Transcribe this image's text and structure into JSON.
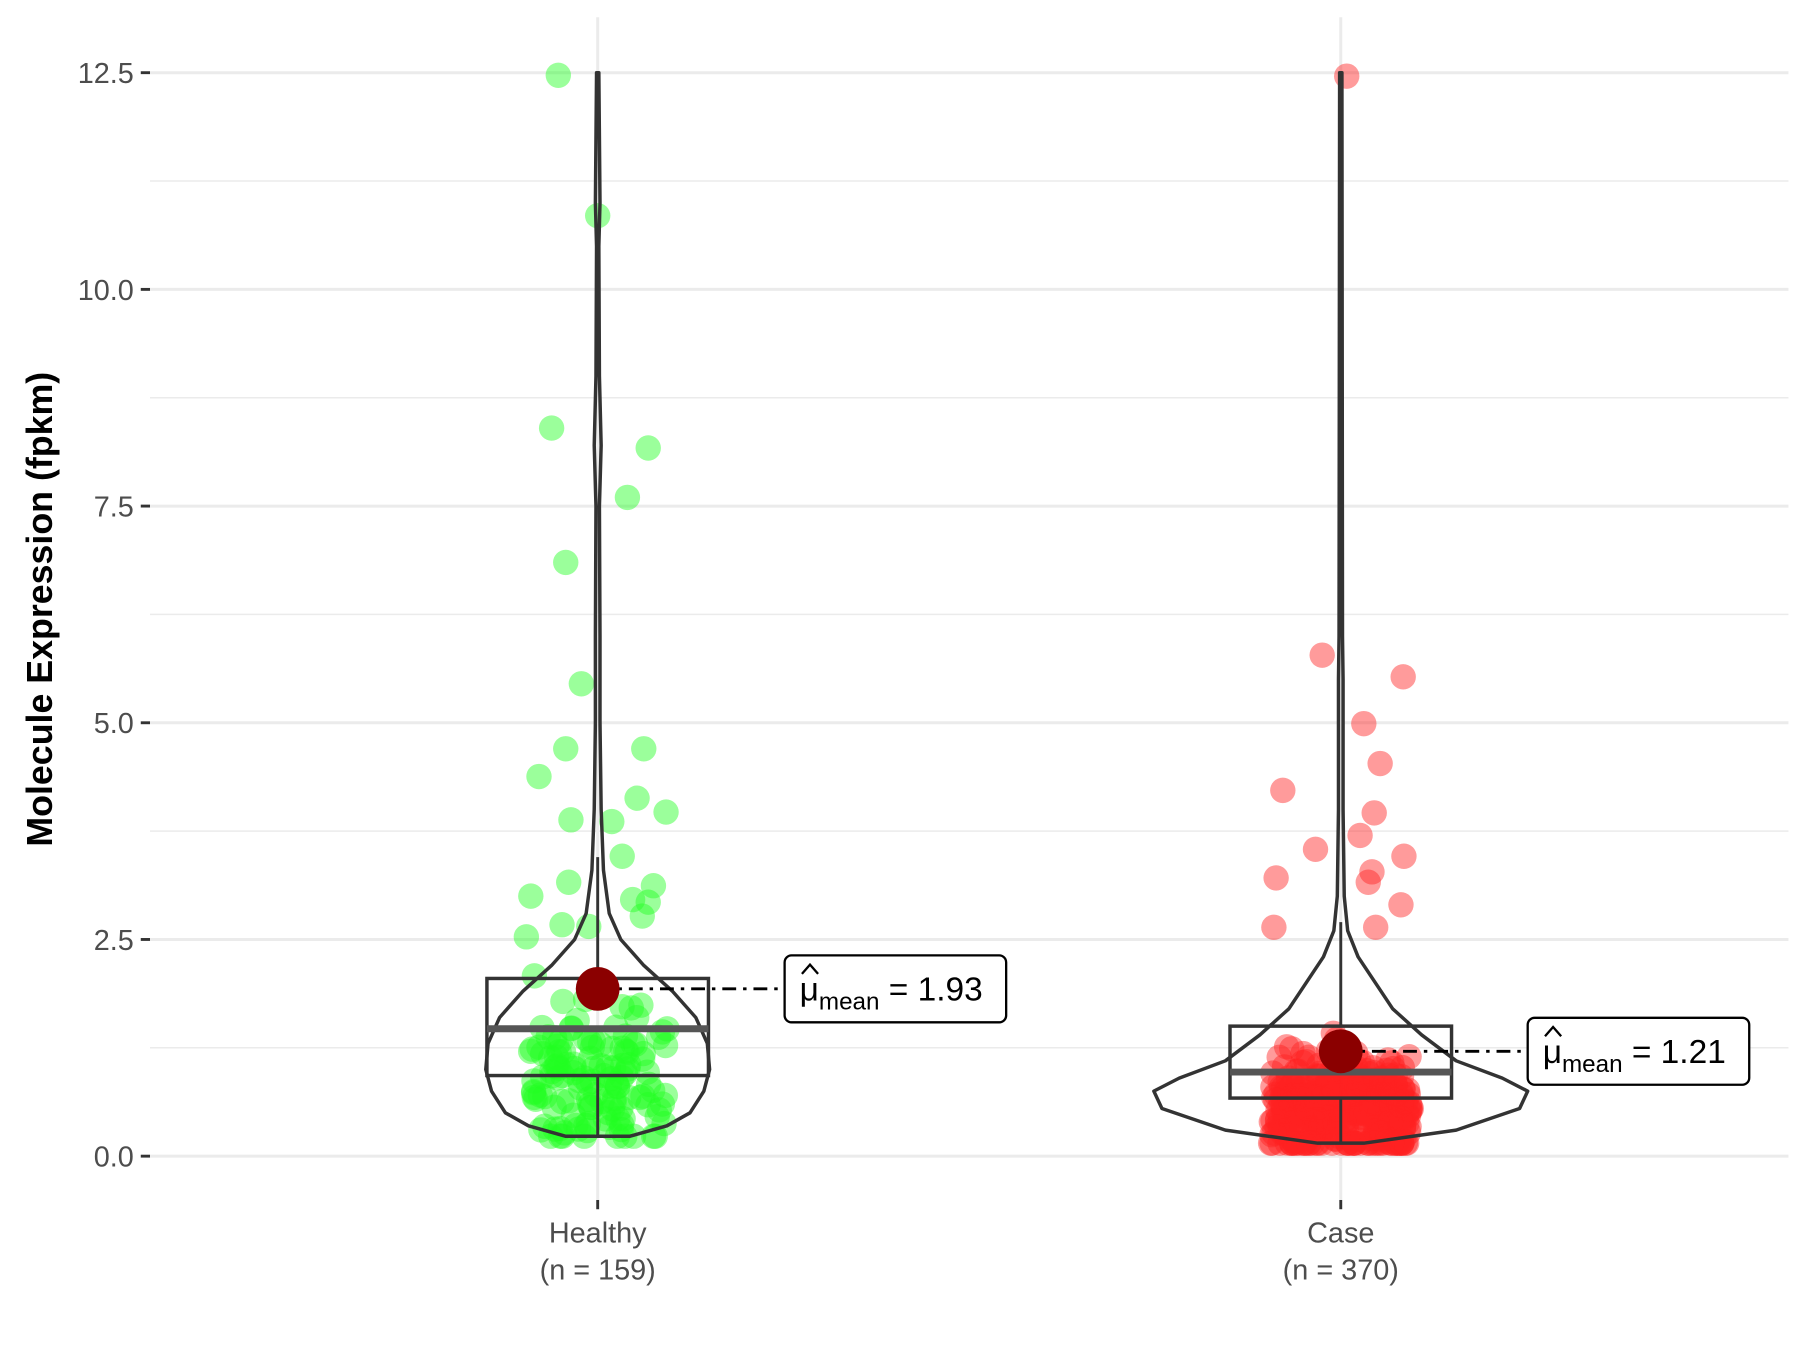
{
  "chart_data": {
    "type": "violin-box-scatter",
    "title": "",
    "xlabel": "",
    "ylabel": "Molecule Expression (fpkm)",
    "ylim": [
      -0.15,
      13.0
    ],
    "yticks": [
      0,
      2.5,
      5,
      7.5,
      10,
      12.5
    ],
    "ytick_labels": [
      "0.0",
      "2.5",
      "5.0",
      "7.5",
      "10.0",
      "12.5"
    ],
    "grid": true,
    "groups": [
      {
        "name": "Healthy",
        "n_label": "(n = 159)",
        "n": 159,
        "color": "#22ff22",
        "box": {
          "lower": 0.23,
          "q1": 0.93,
          "median": 1.47,
          "q3": 2.05,
          "upper": 3.45
        },
        "mean": 1.93,
        "mean_label": "= 1.93",
        "violin": [
          [
            0.23,
            28
          ],
          [
            0.35,
            60
          ],
          [
            0.5,
            80
          ],
          [
            0.75,
            92
          ],
          [
            1.0,
            97
          ],
          [
            1.3,
            95
          ],
          [
            1.6,
            85
          ],
          [
            1.9,
            65
          ],
          [
            2.2,
            40
          ],
          [
            2.5,
            20
          ],
          [
            2.8,
            10
          ],
          [
            3.3,
            5
          ],
          [
            4,
            3
          ],
          [
            5,
            2
          ],
          [
            6,
            2
          ],
          [
            7.5,
            1.5
          ],
          [
            8.2,
            3
          ],
          [
            9,
            1.5
          ],
          [
            10.5,
            1
          ],
          [
            11,
            2
          ],
          [
            12.5,
            1
          ]
        ],
        "points": [
          [
            -0.053,
            12.47
          ],
          [
            0,
            10.85
          ],
          [
            -0.062,
            8.4
          ],
          [
            0.068,
            8.17
          ],
          [
            0.04,
            7.6
          ],
          [
            -0.043,
            6.85
          ],
          [
            -0.022,
            5.45
          ],
          [
            -0.043,
            4.7
          ],
          [
            0.062,
            4.7
          ],
          [
            -0.079,
            4.38
          ],
          [
            0.053,
            4.13
          ],
          [
            0.092,
            3.97
          ],
          [
            -0.036,
            3.88
          ],
          [
            0.019,
            3.86
          ],
          [
            0.033,
            3.46
          ],
          [
            -0.039,
            3.16
          ],
          [
            0.075,
            3.12
          ],
          [
            -0.09,
            3.0
          ],
          [
            0.047,
            2.96
          ],
          [
            0.068,
            2.93
          ],
          [
            0.06,
            2.77
          ],
          [
            -0.096,
            2.53
          ],
          [
            -0.048,
            2.67
          ],
          [
            -0.012,
            2.65
          ]
        ]
      },
      {
        "name": "Case",
        "n_label": "(n = 370)",
        "n": 370,
        "color": "#ff2222",
        "box": {
          "lower": 0.15,
          "q1": 0.67,
          "median": 0.97,
          "q3": 1.5,
          "upper": 2.7
        },
        "mean": 1.21,
        "mean_label": "= 1.21",
        "violin": [
          [
            0.15,
            20
          ],
          [
            0.3,
            100
          ],
          [
            0.55,
            155
          ],
          [
            0.75,
            162
          ],
          [
            0.9,
            140
          ],
          [
            1.1,
            100
          ],
          [
            1.4,
            70
          ],
          [
            1.7,
            45
          ],
          [
            2.0,
            30
          ],
          [
            2.3,
            15
          ],
          [
            2.6,
            6
          ],
          [
            3,
            3
          ],
          [
            4,
            2
          ],
          [
            5.5,
            2
          ],
          [
            6,
            1.5
          ],
          [
            12.5,
            1
          ]
        ],
        "points": [
          [
            0.008,
            12.46
          ],
          [
            -0.025,
            5.78
          ],
          [
            0.084,
            5.53
          ],
          [
            0.031,
            4.99
          ],
          [
            0.053,
            4.53
          ],
          [
            -0.078,
            4.22
          ],
          [
            0.045,
            3.96
          ],
          [
            0.026,
            3.7
          ],
          [
            -0.034,
            3.54
          ],
          [
            0.085,
            3.46
          ],
          [
            0.042,
            3.28
          ],
          [
            -0.087,
            3.21
          ],
          [
            0.037,
            3.16
          ],
          [
            0.081,
            2.9
          ],
          [
            -0.09,
            2.64
          ],
          [
            0.047,
            2.64
          ]
        ]
      }
    ],
    "mean_symbol": "μ",
    "mean_subscript": "mean",
    "mean_point_color": "#8b0000"
  }
}
